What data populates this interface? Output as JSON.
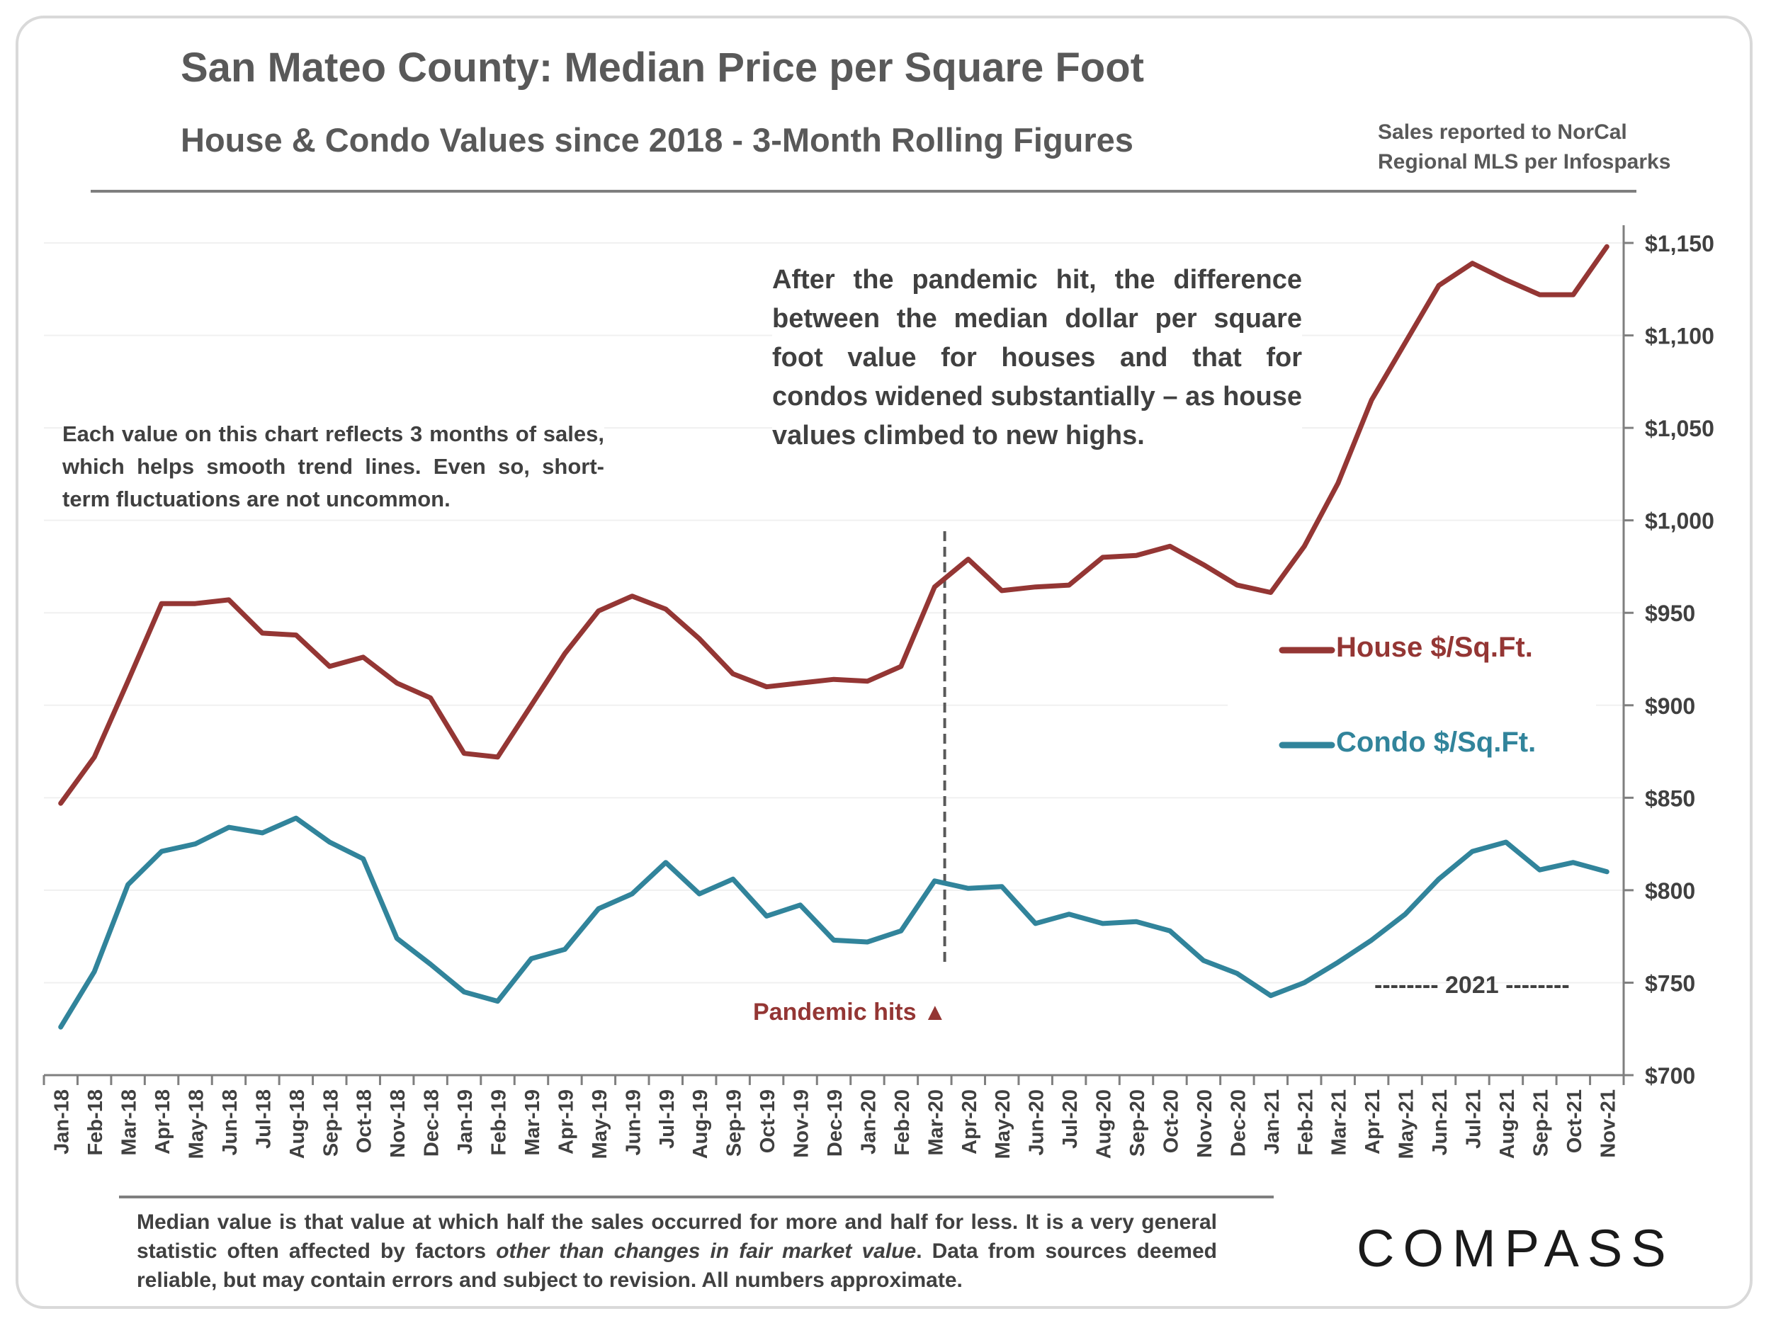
{
  "header": {
    "title": "San Mateo County: Median Price per Square Foot",
    "subtitle": "House & Condo Values since 2018 - 3-Month Rolling Figures",
    "source_line1": "Sales reported to NorCal",
    "source_line2": "Regional MLS per Infosparks"
  },
  "annotations": {
    "left_note": "Each value on this chart reflects 3 months of sales, which helps smooth trend lines. Even so, short-term fluctuations are not uncommon.",
    "right_note": "After the pandemic hit, the difference between the median dollar per square foot value for houses and that for condos widened substantially – as house values climbed to new highs.",
    "pandemic_label": "Pandemic hits ▲",
    "year_label": "-------- 2021 --------"
  },
  "footer": {
    "footnote_part1": "Median value is that value at which half the sales occurred for more and half for less. It is a very general statistic often affected by factors ",
    "footnote_italic": "other than changes in fair market value",
    "footnote_part2": ". Data from sources deemed reliable, but may contain errors and subject to revision. All numbers approximate.",
    "logo_text": "COMPASS"
  },
  "chart_data": {
    "type": "line",
    "categories": [
      "Jan-18",
      "Feb-18",
      "Mar-18",
      "Apr-18",
      "May-18",
      "Jun-18",
      "Jul-18",
      "Aug-18",
      "Sep-18",
      "Oct-18",
      "Nov-18",
      "Dec-18",
      "Jan-19",
      "Feb-19",
      "Mar-19",
      "Apr-19",
      "May-19",
      "Jun-19",
      "Jul-19",
      "Aug-19",
      "Sep-19",
      "Oct-19",
      "Nov-19",
      "Dec-19",
      "Jan-20",
      "Feb-20",
      "Mar-20",
      "Apr-20",
      "May-20",
      "Jun-20",
      "Jul-20",
      "Aug-20",
      "Sep-20",
      "Oct-20",
      "Nov-20",
      "Dec-20",
      "Jan-21",
      "Feb-21",
      "Mar-21",
      "Apr-21",
      "May-21",
      "Jun-21",
      "Jul-21",
      "Aug-21",
      "Sep-21",
      "Oct-21",
      "Nov-21"
    ],
    "series": [
      {
        "name": "House $/Sq.Ft.",
        "color": "#943634",
        "values": [
          847,
          872,
          913,
          955,
          955,
          957,
          939,
          938,
          921,
          926,
          912,
          904,
          874,
          872,
          900,
          928,
          951,
          959,
          952,
          936,
          917,
          910,
          912,
          914,
          913,
          921,
          964,
          979,
          962,
          964,
          965,
          980,
          981,
          986,
          976,
          965,
          961,
          986,
          1020,
          1065,
          1096,
          1127,
          1139,
          1130,
          1122,
          1122,
          1148
        ]
      },
      {
        "name": "Condo $/Sq.Ft.",
        "color": "#31849b",
        "values": [
          726,
          756,
          803,
          821,
          825,
          834,
          831,
          839,
          826,
          817,
          774,
          760,
          745,
          740,
          763,
          768,
          790,
          798,
          815,
          798,
          806,
          786,
          792,
          773,
          772,
          778,
          805,
          801,
          802,
          782,
          787,
          782,
          783,
          778,
          762,
          755,
          743,
          750,
          761,
          773,
          787,
          806,
          821,
          826,
          811,
          815,
          810
        ]
      }
    ],
    "y_tick_labels": [
      "$700",
      "$750",
      "$800",
      "$850",
      "$900",
      "$950",
      "$1,000",
      "$1,050",
      "$1,100",
      "$1,150"
    ],
    "ylim": [
      700,
      1170
    ],
    "y_axis_side": "right",
    "grid": "horizontal",
    "legend_position": "center-right",
    "pandemic_marker_category": "Mar-20"
  }
}
